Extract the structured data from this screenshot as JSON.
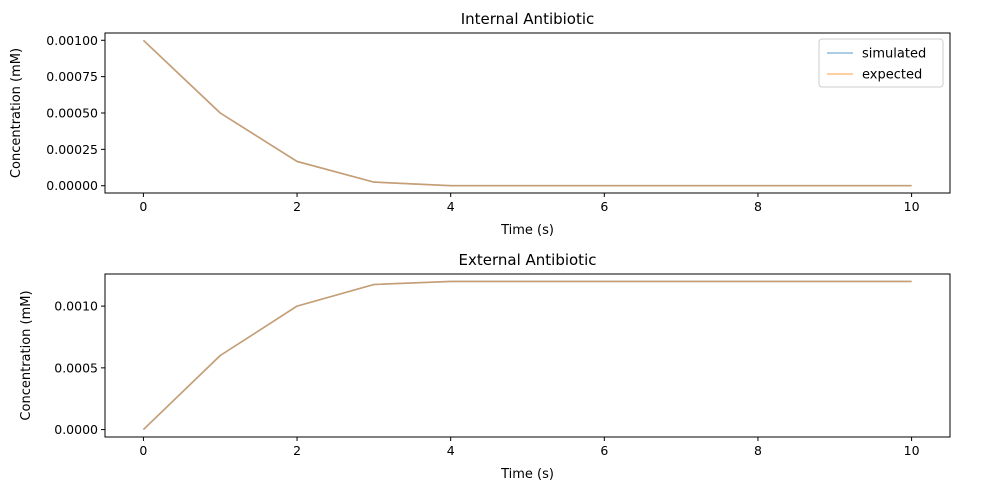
{
  "chart_data": [
    {
      "type": "line",
      "title": "Internal Antibiotic",
      "xlabel": "Time (s)",
      "ylabel": "Concentration (mM)",
      "xlim": [
        -0.5,
        10.5
      ],
      "ylim": [
        -5e-05,
        0.00105
      ],
      "xticks": [
        0,
        2,
        4,
        6,
        8,
        10
      ],
      "xtick_labels": [
        "0",
        "2",
        "4",
        "6",
        "8",
        "10"
      ],
      "yticks": [
        0,
        0.00025,
        0.0005,
        0.00075,
        0.001
      ],
      "ytick_labels": [
        "0.00000",
        "0.00025",
        "0.00050",
        "0.00075",
        "0.00100"
      ],
      "x": [
        0,
        1,
        2,
        3,
        4,
        5,
        6,
        7,
        8,
        9,
        10
      ],
      "series": [
        {
          "name": "simulated",
          "color": "#1f77b4",
          "values": [
            0.001,
            0.0005,
            0.000167,
            2.5e-05,
            5e-07,
            0,
            0,
            0,
            0,
            0,
            0
          ]
        },
        {
          "name": "expected",
          "color": "#ff7f0e",
          "values": [
            0.001,
            0.0005,
            0.000167,
            2.5e-05,
            5e-07,
            0,
            0,
            0,
            0,
            0,
            0
          ]
        }
      ],
      "legend": "top-right",
      "grid": false
    },
    {
      "type": "line",
      "title": "External Antibiotic",
      "xlabel": "Time (s)",
      "ylabel": "Concentration (mM)",
      "xlim": [
        -0.5,
        10.5
      ],
      "ylim": [
        -6e-05,
        0.00126
      ],
      "xticks": [
        0,
        2,
        4,
        6,
        8,
        10
      ],
      "xtick_labels": [
        "0",
        "2",
        "4",
        "6",
        "8",
        "10"
      ],
      "yticks": [
        0,
        0.0005,
        0.001
      ],
      "ytick_labels": [
        "0.0000",
        "0.0005",
        "0.0010"
      ],
      "x": [
        0,
        1,
        2,
        3,
        4,
        5,
        6,
        7,
        8,
        9,
        10
      ],
      "series": [
        {
          "name": "simulated",
          "color": "#1f77b4",
          "values": [
            0,
            0.0006,
            0.001,
            0.001175,
            0.0012,
            0.0012,
            0.0012,
            0.0012,
            0.0012,
            0.0012,
            0.0012
          ]
        },
        {
          "name": "expected",
          "color": "#ff7f0e",
          "values": [
            0,
            0.0006,
            0.001,
            0.001175,
            0.0012,
            0.0012,
            0.0012,
            0.0012,
            0.0012,
            0.0012,
            0.0012
          ]
        }
      ],
      "legend": "none",
      "grid": false
    }
  ]
}
